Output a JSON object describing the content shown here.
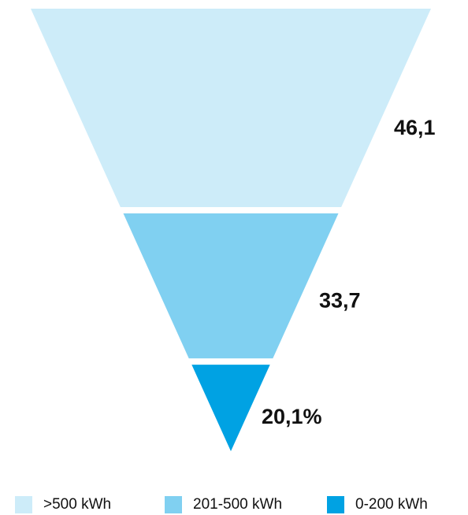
{
  "chart_data": {
    "type": "funnel",
    "title": "",
    "categories": [
      ">500 kWh",
      "201-500 kWh",
      "0-200 kWh"
    ],
    "values": [
      46.1,
      33.7,
      20.1
    ],
    "value_labels": [
      "46,1",
      "33,7",
      "20,1%"
    ],
    "colors": [
      "#cdecf9",
      "#80d0f1",
      "#00a2e3"
    ],
    "legend": {
      "placement": "bottom",
      "entries": [
        ">500 kWh",
        "201-500 kWh",
        "0-200 kWh"
      ]
    },
    "grid": false
  }
}
